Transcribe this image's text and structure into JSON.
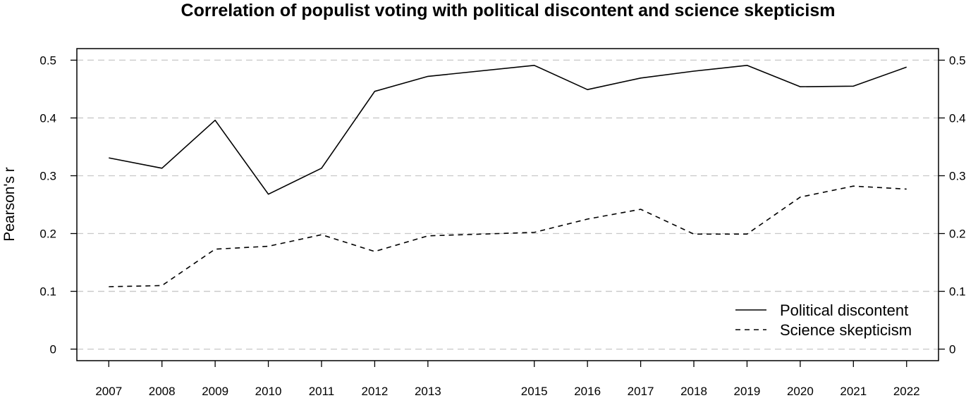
{
  "chart_data": {
    "type": "line",
    "title": "Correlation of populist voting with political discontent and science skepticism",
    "xlabel": "",
    "ylabel": "Pearson's r",
    "x": [
      2007,
      2008,
      2009,
      2010,
      2011,
      2012,
      2013,
      2015,
      2016,
      2017,
      2018,
      2019,
      2020,
      2021,
      2022
    ],
    "x_tick_labels": [
      "2007",
      "2008",
      "2009",
      "2010",
      "2011",
      "2012",
      "2013",
      "2015",
      "2016",
      "2017",
      "2018",
      "2019",
      "2020",
      "2021",
      "2022"
    ],
    "xlim": [
      2006.4,
      2022.6
    ],
    "ylim": [
      -0.02,
      0.52
    ],
    "y_ticks": [
      0,
      0.1,
      0.2,
      0.3,
      0.4,
      0.5
    ],
    "y_tick_labels": [
      "0",
      "0.1",
      "0.2",
      "0.3",
      "0.4",
      "0.5"
    ],
    "grid": "horizontal dashed",
    "legend_position": "bottom-right",
    "series": [
      {
        "name": "Political discontent",
        "style": "solid",
        "values": [
          0.331,
          0.313,
          0.396,
          0.268,
          0.313,
          0.446,
          0.472,
          0.491,
          0.449,
          0.469,
          0.481,
          0.491,
          0.454,
          0.455,
          0.488
        ]
      },
      {
        "name": "Science skepticism",
        "style": "dashed",
        "values": [
          0.108,
          0.11,
          0.173,
          0.178,
          0.198,
          0.169,
          0.196,
          0.202,
          0.225,
          0.242,
          0.199,
          0.199,
          0.263,
          0.282,
          0.277
        ]
      }
    ]
  }
}
